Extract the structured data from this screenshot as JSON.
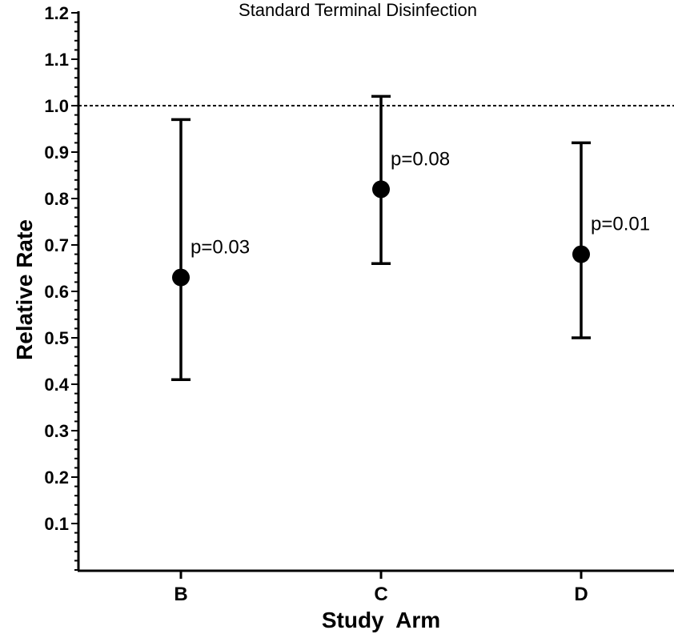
{
  "chart_data": {
    "type": "scatter",
    "title": "Standard Terminal Disinfection",
    "xlabel": "Study  Arm",
    "ylabel": "Relative Rate",
    "categories": [
      "B",
      "C",
      "D"
    ],
    "values": [
      0.63,
      0.82,
      0.68
    ],
    "lower": [
      0.41,
      0.66,
      0.5
    ],
    "upper": [
      0.97,
      1.02,
      0.92
    ],
    "annotations": [
      "p=0.03",
      "p=0.08",
      "p=0.01"
    ],
    "ylim": [
      0.0,
      1.2
    ],
    "yticks": [
      0.1,
      0.2,
      0.3,
      0.4,
      0.5,
      0.6,
      0.7,
      0.8,
      0.9,
      1.0,
      1.1,
      1.2
    ],
    "ytick_labels": [
      "0.1",
      "0.2",
      "0.3",
      "0.4",
      "0.5",
      "0.6",
      "0.7",
      "0.8",
      "0.9",
      "1.0",
      "1.1",
      "1.2"
    ],
    "reference_line": 1.0,
    "grid": false,
    "colors": {
      "marker": "#000000",
      "line": "#000000",
      "background": "#ffffff"
    }
  }
}
